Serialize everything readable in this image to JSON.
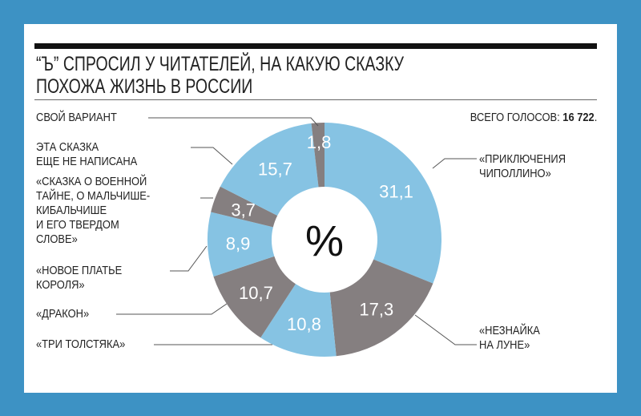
{
  "title_lines": [
    "“Ъ” СПРОСИЛ У ЧИТАТЕЛЕЙ, НА КАКУЮ СКАЗКУ",
    "ПОХОЖА ЖИЗНЬ В РОССИИ"
  ],
  "total": {
    "label": "ВСЕГО ГОЛОСОВ: ",
    "value": "16 722",
    "suffix": "."
  },
  "colors": {
    "background": "#3d92c4",
    "blue": "#86c3e3",
    "grey": "#857f80"
  },
  "chart_data": {
    "type": "pie",
    "donut": true,
    "center_label": "%",
    "slices": [
      {
        "label": [
          "«ПРИКЛЮЧЕНИЯ",
          "ЧИПОЛЛИНО»"
        ],
        "value": 31.1,
        "text": "31,1",
        "color": "#86c3e3"
      },
      {
        "label": [
          "«НЕЗНАЙКА",
          "НА ЛУНЕ»"
        ],
        "value": 17.3,
        "text": "17,3",
        "color": "#857f80"
      },
      {
        "label": [
          "«ТРИ ТОЛСТЯКА»"
        ],
        "value": 10.8,
        "text": "10,8",
        "color": "#86c3e3"
      },
      {
        "label": [
          "«ДРАКОН»"
        ],
        "value": 10.7,
        "text": "10,7",
        "color": "#857f80"
      },
      {
        "label": [
          "«НОВОЕ ПЛАТЬЕ",
          "КОРОЛЯ»"
        ],
        "value": 8.9,
        "text": "8,9",
        "color": "#86c3e3"
      },
      {
        "label": [
          "«СКАЗКА О ВОЕННОЙ",
          "ТАЙНЕ, О МАЛЬЧИШЕ-",
          "КИБАЛЬЧИШЕ",
          "И ЕГО ТВЕРДОМ",
          "СЛОВЕ»"
        ],
        "value": 3.7,
        "text": "3,7",
        "color": "#857f80"
      },
      {
        "label": [
          "ЭТА СКАЗКА",
          "ЕЩЕ НЕ НАПИСАНА"
        ],
        "value": 15.7,
        "text": "15,7",
        "color": "#86c3e3"
      },
      {
        "label": [
          "СВОЙ ВАРИАНТ"
        ],
        "value": 1.8,
        "text": "1,8",
        "color": "#857f80"
      }
    ]
  }
}
